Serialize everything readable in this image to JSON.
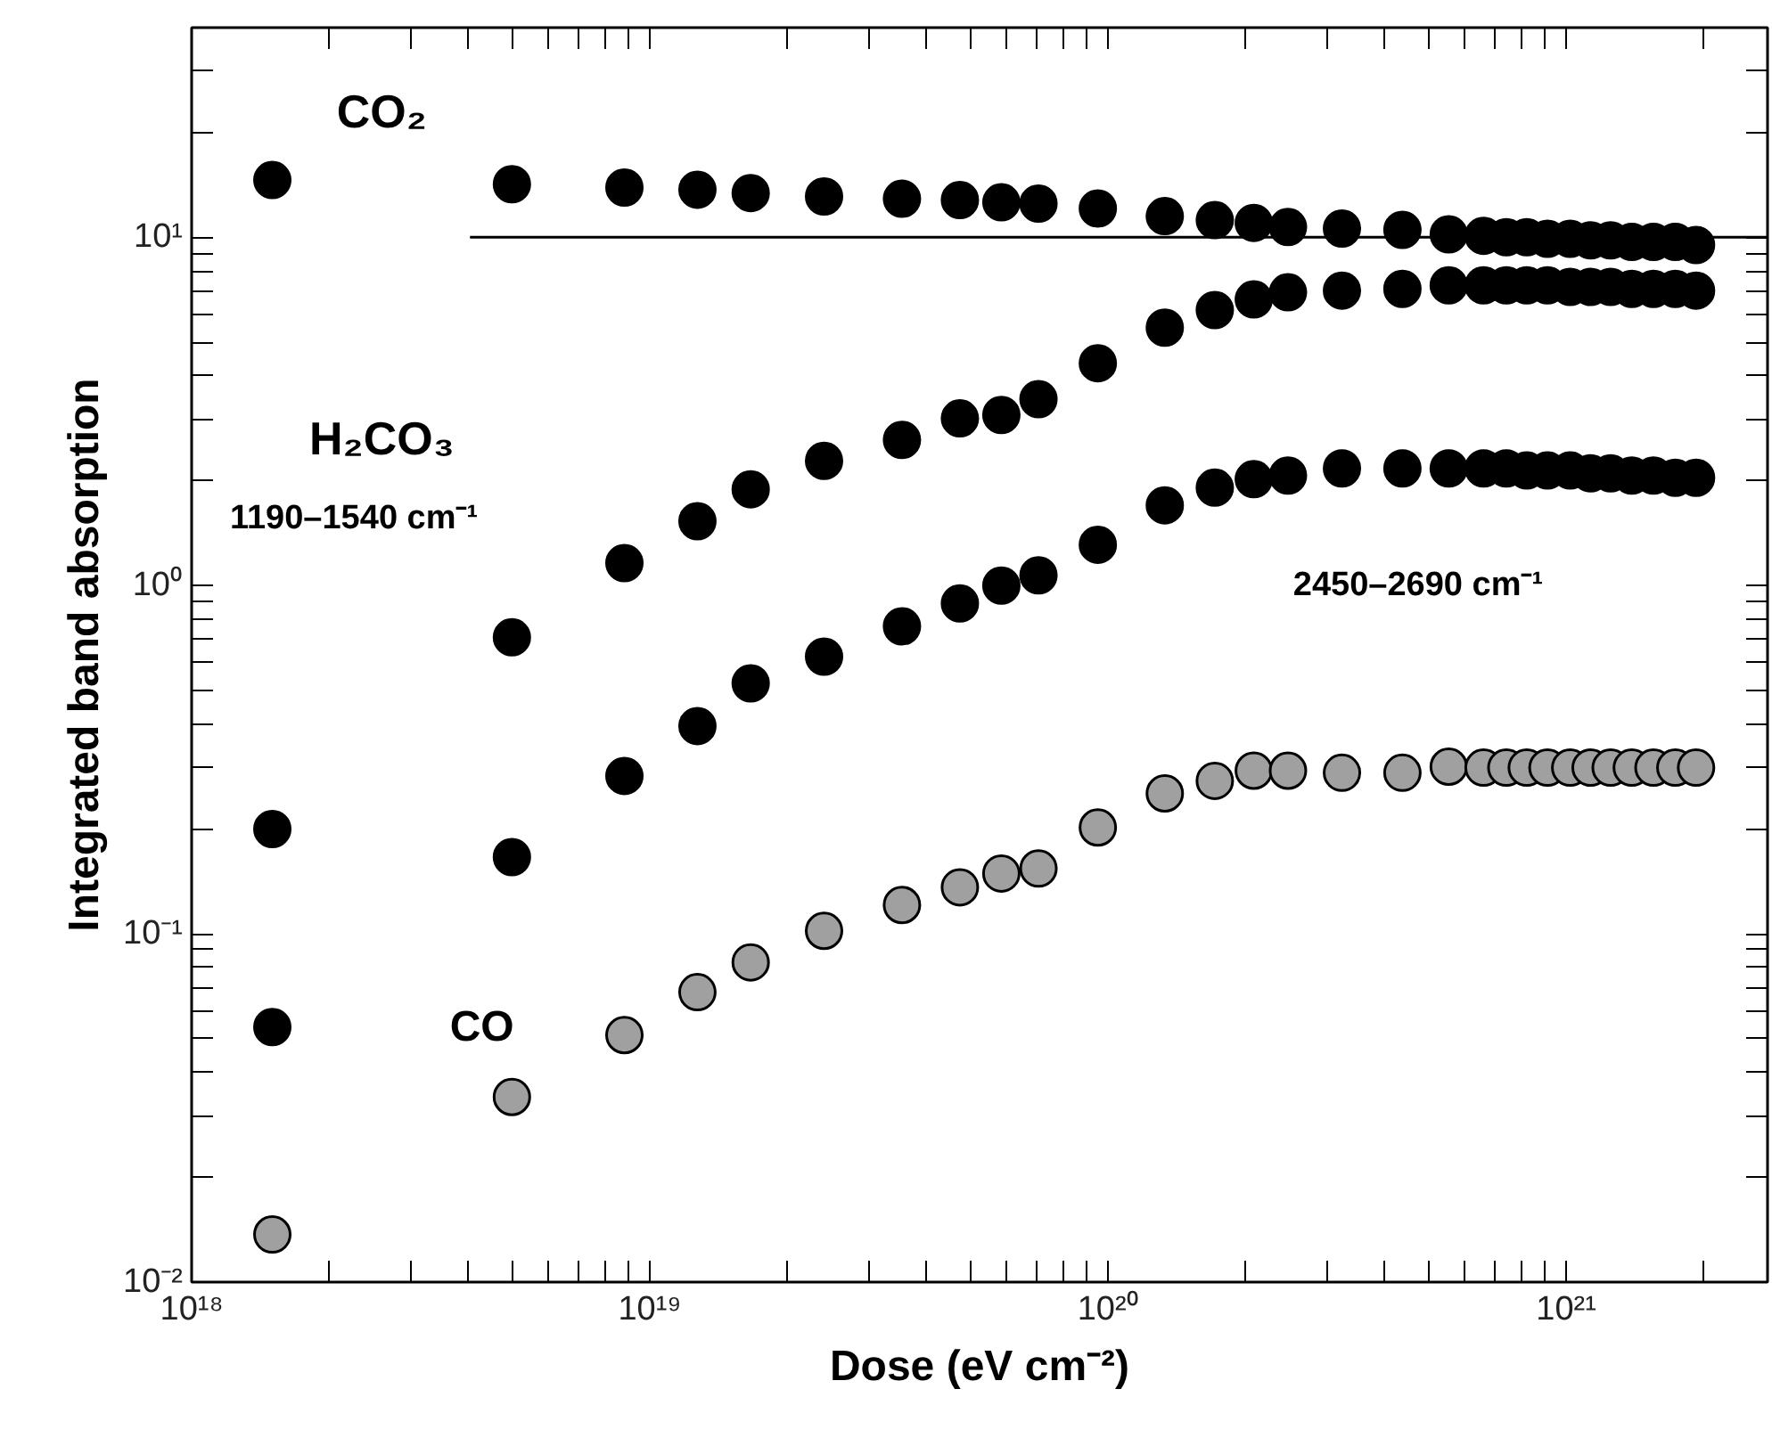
{
  "chart_data": {
    "type": "scatter",
    "xlabel": "Dose (eV cm⁻²)",
    "ylabel": "Integrated band absorption",
    "annotations": [
      "CO₂",
      "H₂CO₃",
      "1190–1540 cm⁻¹",
      "2450–2690 cm⁻¹",
      "CO"
    ],
    "log": "xy",
    "grid": false,
    "marker": "circle",
    "xlim": [
      1e+18,
      2.75e+21
    ],
    "ylim": [
      0.01,
      40
    ],
    "xticks": [
      {
        "value": 1e+18,
        "label": "10¹⁸"
      },
      {
        "value": 2e+18,
        "label": null
      },
      {
        "value": 3e+18,
        "label": null
      },
      {
        "value": 4e+18,
        "label": null
      },
      {
        "value": 5e+18,
        "label": null
      },
      {
        "value": 6e+18,
        "label": null
      },
      {
        "value": 7e+18,
        "label": null
      },
      {
        "value": 8e+18,
        "label": null
      },
      {
        "value": 9e+18,
        "label": null
      },
      {
        "value": 1e+19,
        "label": "10¹⁹"
      },
      {
        "value": 2e+19,
        "label": null
      },
      {
        "value": 3e+19,
        "label": null
      },
      {
        "value": 4e+19,
        "label": null
      },
      {
        "value": 5e+19,
        "label": null
      },
      {
        "value": 6e+19,
        "label": null
      },
      {
        "value": 7e+19,
        "label": null
      },
      {
        "value": 8e+19,
        "label": null
      },
      {
        "value": 9e+19,
        "label": null
      },
      {
        "value": 1e+20,
        "label": "10²⁰"
      },
      {
        "value": 2e+20,
        "label": null
      },
      {
        "value": 3e+20,
        "label": null
      },
      {
        "value": 4e+20,
        "label": null
      },
      {
        "value": 5e+20,
        "label": null
      },
      {
        "value": 6e+20,
        "label": null
      },
      {
        "value": 7e+20,
        "label": null
      },
      {
        "value": 8e+20,
        "label": null
      },
      {
        "value": 9e+20,
        "label": null
      },
      {
        "value": 1e+21,
        "label": "10²¹"
      },
      {
        "value": 2e+21,
        "label": null
      }
    ],
    "yticks": [
      {
        "value": 0.01,
        "label": "10⁻²"
      },
      {
        "value": 0.02,
        "label": null
      },
      {
        "value": 0.03,
        "label": null
      },
      {
        "value": 0.04,
        "label": null
      },
      {
        "value": 0.05,
        "label": null
      },
      {
        "value": 0.06,
        "label": null
      },
      {
        "value": 0.07,
        "label": null
      },
      {
        "value": 0.08,
        "label": null
      },
      {
        "value": 0.09,
        "label": null
      },
      {
        "value": 0.1,
        "label": "10⁻¹"
      },
      {
        "value": 0.2,
        "label": null
      },
      {
        "value": 0.3,
        "label": null
      },
      {
        "value": 0.4,
        "label": null
      },
      {
        "value": 0.5,
        "label": null
      },
      {
        "value": 0.6,
        "label": null
      },
      {
        "value": 0.7,
        "label": null
      },
      {
        "value": 0.8,
        "label": null
      },
      {
        "value": 0.9,
        "label": null
      },
      {
        "value": 1,
        "label": "10⁰"
      },
      {
        "value": 2,
        "label": null
      },
      {
        "value": 3,
        "label": null
      },
      {
        "value": 4,
        "label": null
      },
      {
        "value": 5,
        "label": null
      },
      {
        "value": 6,
        "label": null
      },
      {
        "value": 7,
        "label": null
      },
      {
        "value": 8,
        "label": null
      },
      {
        "value": 9,
        "label": null
      },
      {
        "value": 10,
        "label": "10¹"
      },
      {
        "value": 20,
        "label": null
      },
      {
        "value": 30,
        "label": null
      }
    ],
    "x": [
      1.5e+18,
      5e+18,
      8.8e+18,
      1.27e+19,
      1.66e+19,
      2.4e+19,
      3.55e+19,
      4.75e+19,
      5.85e+19,
      7.05e+19,
      9.5e+19,
      1.33e+20,
      1.71e+20,
      2.08e+20,
      2.47e+20,
      3.24e+20,
      4.39e+20,
      5.54e+20,
      6.6e+20,
      7.4e+20,
      8.2e+20,
      9.1e+20,
      1.02e+21,
      1.13e+21,
      1.25e+21,
      1.39e+21,
      1.55e+21,
      1.73e+21,
      1.92e+21
    ],
    "series": [
      {
        "color": "#000000",
        "values": [
          14.6,
          14.2,
          13.9,
          13.7,
          13.4,
          13.1,
          12.9,
          12.8,
          12.6,
          12.5,
          12.1,
          11.5,
          11.2,
          11.0,
          10.7,
          10.6,
          10.5,
          10.2,
          10.1,
          10.0,
          10.0,
          9.9,
          9.9,
          9.8,
          9.8,
          9.7,
          9.7,
          9.7,
          9.5
        ]
      },
      {
        "color": "#000000",
        "values": [
          0.2,
          0.71,
          1.16,
          1.53,
          1.89,
          2.28,
          2.62,
          3.02,
          3.09,
          3.43,
          4.35,
          5.5,
          6.18,
          6.63,
          6.95,
          7.03,
          7.11,
          7.28,
          7.28,
          7.28,
          7.28,
          7.28,
          7.2,
          7.2,
          7.2,
          7.11,
          7.11,
          7.11,
          7.03
        ]
      },
      {
        "color": "#000000",
        "values": [
          0.054,
          0.166,
          0.284,
          0.395,
          0.524,
          0.625,
          0.764,
          0.889,
          1.0,
          1.07,
          1.31,
          1.7,
          1.91,
          2.02,
          2.07,
          2.17,
          2.17,
          2.17,
          2.17,
          2.17,
          2.14,
          2.14,
          2.14,
          2.1,
          2.1,
          2.07,
          2.07,
          2.04,
          2.04
        ]
      },
      {
        "color": "#a0a0a0",
        "values": [
          0.0137,
          0.034,
          0.0512,
          0.068,
          0.0828,
          0.102,
          0.121,
          0.136,
          0.149,
          0.154,
          0.202,
          0.253,
          0.275,
          0.294,
          0.294,
          0.29,
          0.29,
          0.302,
          0.3,
          0.3,
          0.3,
          0.3,
          0.3,
          0.3,
          0.3,
          0.3,
          0.3,
          0.3,
          0.3
        ]
      },
      {
        "type": "line",
        "marker": "none",
        "color": "#000000",
        "x": [
          4.05e+18,
          2.75e+21
        ],
        "values": [
          10,
          10
        ]
      }
    ]
  }
}
